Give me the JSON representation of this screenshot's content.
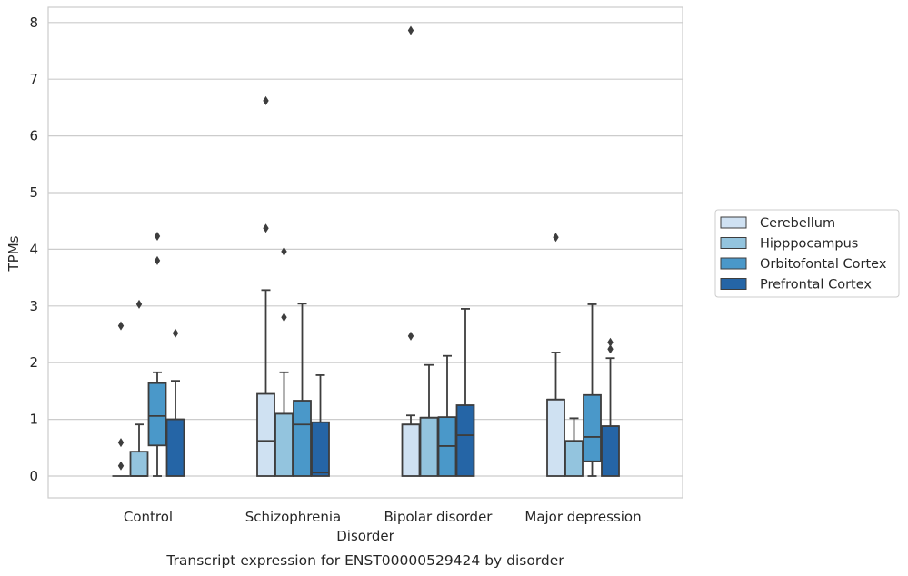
{
  "chart_data": {
    "type": "box",
    "title": "Transcript expression for ENST00000529424 by disorder",
    "xlabel": "Disorder",
    "ylabel": "TPMs",
    "ylim": [
      -0.38,
      8.25
    ],
    "yticks": [
      0,
      1,
      2,
      3,
      4,
      5,
      6,
      7,
      8
    ],
    "grid": true,
    "legend_position": "right",
    "categories": [
      "Control",
      "Schizophrenia",
      "Bipolar disorder",
      "Major depression"
    ],
    "series": [
      {
        "name": "Cerebellum",
        "color": "#cfe1f2",
        "boxes": [
          {
            "q1": 0,
            "median": 0,
            "q3": 0,
            "whislo": 0,
            "whishi": 0,
            "fliers": [
              0.18,
              0.59,
              2.65
            ]
          },
          {
            "q1": 0,
            "median": 0.62,
            "q3": 1.45,
            "whislo": 0,
            "whishi": 3.28,
            "fliers": [
              4.37,
              6.62
            ]
          },
          {
            "q1": 0,
            "median": 0.91,
            "q3": 0.91,
            "whislo": 0,
            "whishi": 1.07,
            "fliers": [
              2.47,
              7.86
            ]
          },
          {
            "q1": 0,
            "median": 1.35,
            "q3": 1.35,
            "whislo": 0,
            "whishi": 2.18,
            "fliers": [
              4.21
            ]
          }
        ]
      },
      {
        "name": "Hipppocampus",
        "color": "#93c4de",
        "boxes": [
          {
            "q1": 0,
            "median": 0,
            "q3": 0.43,
            "whislo": 0,
            "whishi": 0.91,
            "fliers": [
              3.03
            ]
          },
          {
            "q1": 0,
            "median": 1.1,
            "q3": 1.1,
            "whislo": 0,
            "whishi": 1.83,
            "fliers": [
              2.8,
              3.96
            ]
          },
          {
            "q1": 0,
            "median": 1.03,
            "q3": 1.03,
            "whislo": 0,
            "whishi": 1.96,
            "fliers": []
          },
          {
            "q1": 0,
            "median": 0.62,
            "q3": 0.62,
            "whislo": 0,
            "whishi": 1.02,
            "fliers": []
          }
        ]
      },
      {
        "name": "Orbitofontal Cortex",
        "color": "#4a98c9",
        "boxes": [
          {
            "q1": 0.54,
            "median": 1.06,
            "q3": 1.64,
            "whislo": 0,
            "whishi": 1.83,
            "fliers": [
              3.8,
              4.23
            ]
          },
          {
            "q1": 0,
            "median": 0.91,
            "q3": 1.33,
            "whislo": 0,
            "whishi": 3.04,
            "fliers": []
          },
          {
            "q1": 0,
            "median": 0.53,
            "q3": 1.04,
            "whislo": 0,
            "whishi": 2.12,
            "fliers": []
          },
          {
            "q1": 0.26,
            "median": 0.69,
            "q3": 1.43,
            "whislo": 0,
            "whishi": 3.03,
            "fliers": []
          }
        ]
      },
      {
        "name": "Prefrontal Cortex",
        "color": "#2565a6",
        "boxes": [
          {
            "q1": 0,
            "median": 1.0,
            "q3": 1.0,
            "whislo": 0,
            "whishi": 1.68,
            "fliers": [
              2.52
            ]
          },
          {
            "q1": 0,
            "median": 0.06,
            "q3": 0.95,
            "whislo": 0,
            "whishi": 1.78,
            "fliers": []
          },
          {
            "q1": 0,
            "median": 0.72,
            "q3": 1.25,
            "whislo": 0,
            "whishi": 2.95,
            "fliers": []
          },
          {
            "q1": 0,
            "median": 0.88,
            "q3": 0.88,
            "whislo": 0,
            "whishi": 2.08,
            "fliers": [
              2.24,
              2.36
            ]
          }
        ]
      }
    ]
  }
}
